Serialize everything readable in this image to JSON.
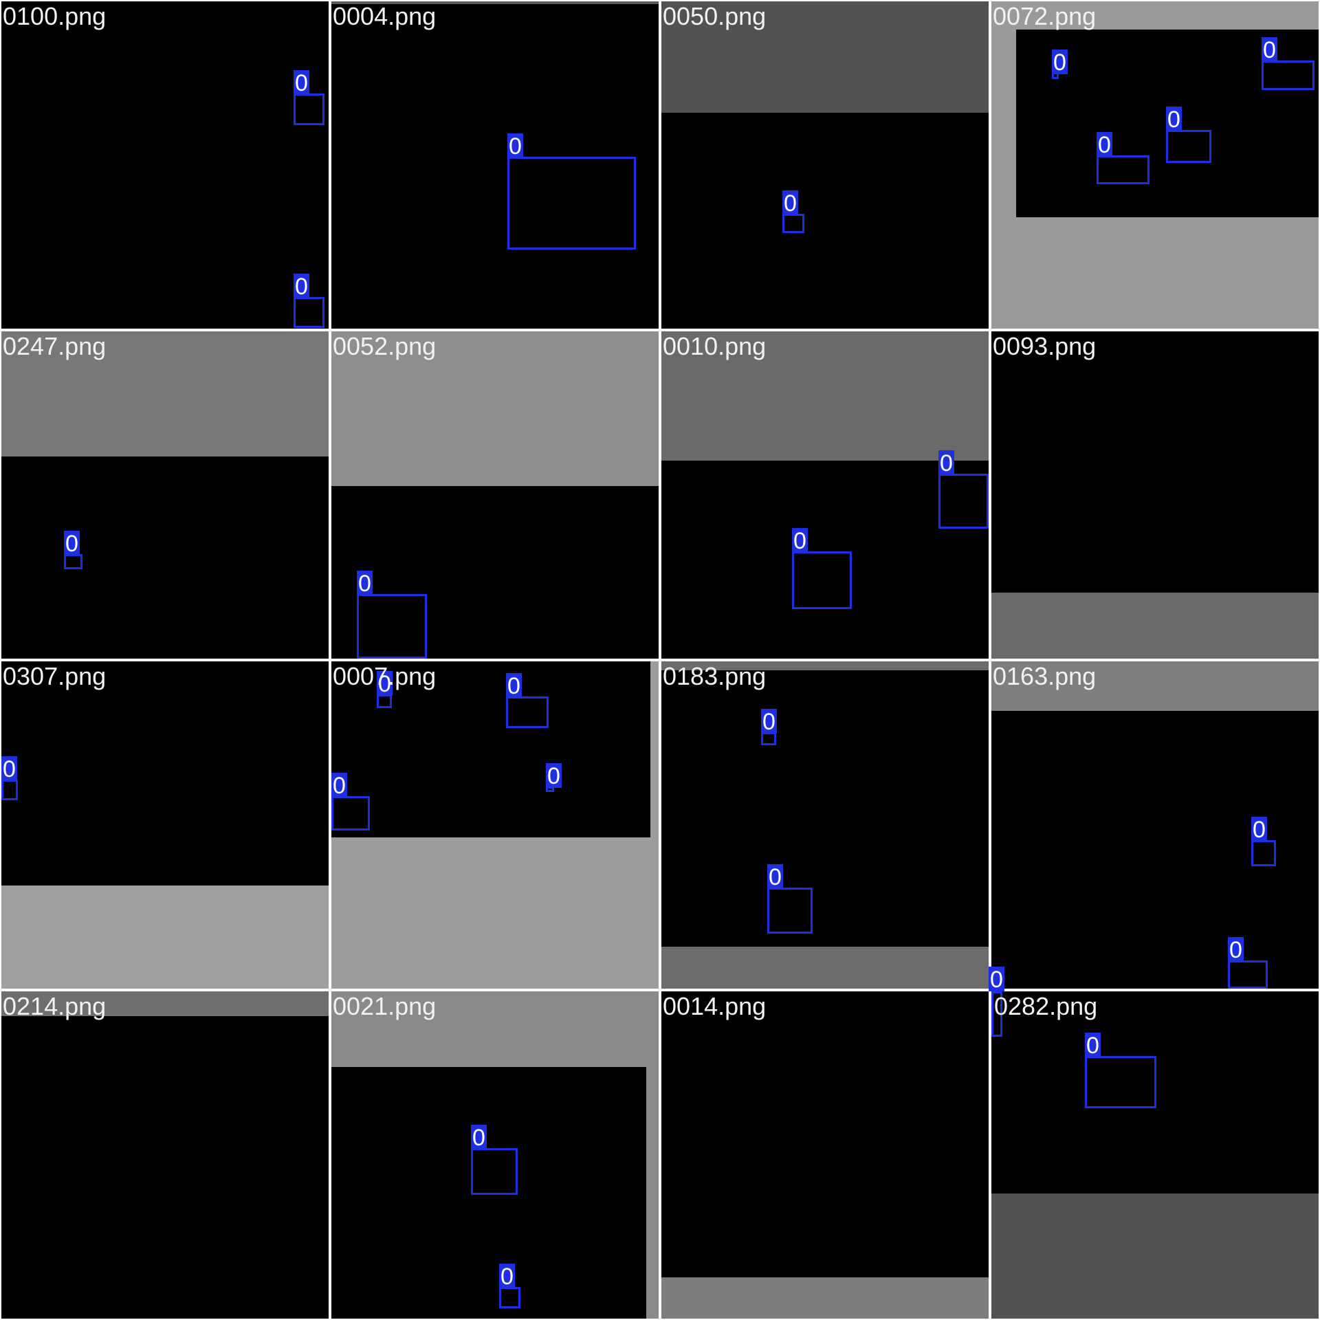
{
  "title": "",
  "colors": {
    "box": "#1e2ee0",
    "label_text": "#ffffff",
    "filename_text": "#f2f2f2",
    "background": "#000000"
  },
  "tiles": [
    {
      "filename": "0100.png",
      "boxes": [
        {
          "label": "0"
        },
        {
          "label": "0"
        }
      ]
    },
    {
      "filename": "0004.png",
      "boxes": [
        {
          "label": "0"
        }
      ]
    },
    {
      "filename": "0050.png",
      "boxes": [
        {
          "label": "0"
        }
      ]
    },
    {
      "filename": "0072.png",
      "boxes": [
        {
          "label": "0"
        },
        {
          "label": "0"
        },
        {
          "label": "0"
        },
        {
          "label": "0"
        }
      ]
    },
    {
      "filename": "0247.png",
      "boxes": [
        {
          "label": "0"
        }
      ]
    },
    {
      "filename": "0052.png",
      "boxes": [
        {
          "label": "0"
        }
      ]
    },
    {
      "filename": "0010.png",
      "boxes": [
        {
          "label": "0"
        },
        {
          "label": "0"
        }
      ]
    },
    {
      "filename": "0093.png",
      "boxes": []
    },
    {
      "filename": "0307.png",
      "boxes": [
        {
          "label": "0"
        }
      ]
    },
    {
      "filename": "0007.png",
      "boxes": [
        {
          "label": "0"
        },
        {
          "label": "0"
        },
        {
          "label": "0"
        },
        {
          "label": "0"
        }
      ]
    },
    {
      "filename": "0183.png",
      "boxes": [
        {
          "label": "0"
        },
        {
          "label": "0"
        }
      ]
    },
    {
      "filename": "0163.png",
      "boxes": [
        {
          "label": "0"
        },
        {
          "label": "0"
        }
      ]
    },
    {
      "filename": "0214.png",
      "boxes": []
    },
    {
      "filename": "0021.png",
      "boxes": [
        {
          "label": "0"
        },
        {
          "label": "0"
        }
      ]
    },
    {
      "filename": "0014.png",
      "boxes": []
    },
    {
      "filename": "0282.png",
      "boxes": [
        {
          "label": "0"
        },
        {
          "label": "0"
        }
      ]
    }
  ]
}
